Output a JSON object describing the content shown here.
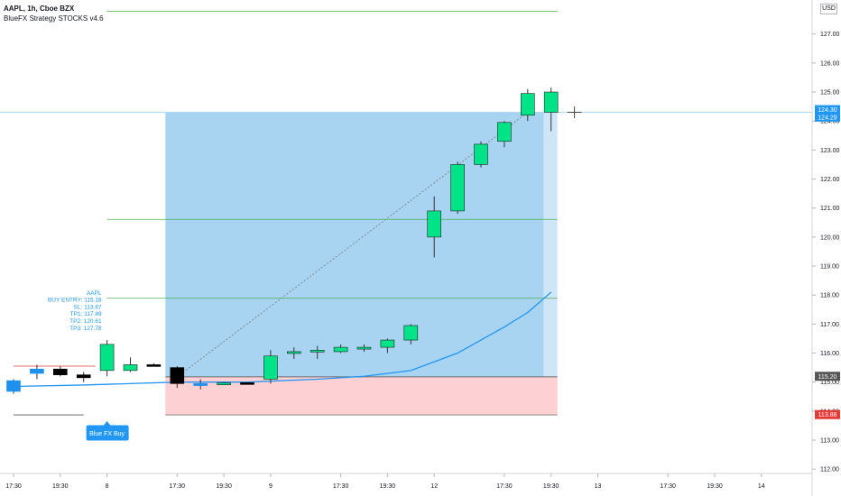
{
  "header": {
    "symbol_line": "AAPL, 1h, Cboe BZX",
    "indicator_line": "BlueFX Strategy STOCKS v4.6"
  },
  "currency_label": "USD",
  "colors": {
    "bull": "#00e487",
    "bear": "#000000",
    "blue_candle": "#1e90ee",
    "profit_zone": "#a8d4f2",
    "profit_zone_current": "#cfe6f8",
    "loss_zone": "#fdd0d3",
    "ma_line": "#2196f3",
    "tp_line": "#4caf50",
    "sl_line": "#e53935",
    "axis_text": "#131722",
    "price_tag_blue": "#2196f3",
    "price_tag_red": "#e53935",
    "price_tag_gray": "#555555"
  },
  "chart_data": {
    "type": "candlestick",
    "symbol": "AAPL",
    "interval": "1h",
    "ylim": [
      111.6,
      128.0
    ],
    "y_ticks": [
      "127.00",
      "126.00",
      "125.00",
      "124.00",
      "123.00",
      "122.00",
      "121.00",
      "120.00",
      "119.00",
      "118.00",
      "117.00",
      "116.00",
      "115.00",
      "114.00",
      "113.00",
      "112.00"
    ],
    "x_ticks": [
      {
        "i": 0,
        "label": "17:30"
      },
      {
        "i": 2,
        "label": "19:30"
      },
      {
        "i": 4,
        "label": "8"
      },
      {
        "i": 7,
        "label": "17:30"
      },
      {
        "i": 9,
        "label": "19:30"
      },
      {
        "i": 11,
        "label": "9"
      },
      {
        "i": 14,
        "label": "17:30"
      },
      {
        "i": 16,
        "label": "19:30"
      },
      {
        "i": 18,
        "label": "12"
      },
      {
        "i": 21,
        "label": "17:30"
      },
      {
        "i": 23,
        "label": "19:30"
      },
      {
        "i": 25,
        "label": "13"
      },
      {
        "i": 28,
        "label": "17:30"
      },
      {
        "i": 30,
        "label": "19:30"
      },
      {
        "i": 32,
        "label": "14"
      }
    ],
    "candles": [
      {
        "i": 0,
        "o": 114.68,
        "h": 115.1,
        "l": 114.6,
        "c": 115.05,
        "style": "blue"
      },
      {
        "i": 1,
        "o": 115.3,
        "h": 115.6,
        "l": 115.1,
        "c": 115.45,
        "style": "blue"
      },
      {
        "i": 2,
        "o": 115.45,
        "h": 115.55,
        "l": 115.2,
        "c": 115.25,
        "style": "bear"
      },
      {
        "i": 3,
        "o": 115.25,
        "h": 115.35,
        "l": 115.0,
        "c": 115.15,
        "style": "bear"
      },
      {
        "i": 4,
        "o": 115.4,
        "h": 116.45,
        "l": 115.2,
        "c": 116.3,
        "style": "bull"
      },
      {
        "i": 5,
        "o": 115.4,
        "h": 115.85,
        "l": 115.35,
        "c": 115.6,
        "style": "bull"
      },
      {
        "i": 6,
        "o": 115.6,
        "h": 115.65,
        "l": 115.55,
        "c": 115.55,
        "style": "bear"
      },
      {
        "i": 7,
        "o": 115.5,
        "h": 115.55,
        "l": 114.8,
        "c": 114.95,
        "style": "bear"
      },
      {
        "i": 8,
        "o": 114.95,
        "h": 115.1,
        "l": 114.75,
        "c": 114.88,
        "style": "blue"
      },
      {
        "i": 9,
        "o": 114.95,
        "h": 115.0,
        "l": 114.92,
        "c": 114.97,
        "style": "bull"
      },
      {
        "i": 10,
        "o": 114.98,
        "h": 115.0,
        "l": 114.93,
        "c": 114.95,
        "style": "bear"
      },
      {
        "i": 11,
        "o": 115.1,
        "h": 116.1,
        "l": 114.95,
        "c": 115.9,
        "style": "bull"
      },
      {
        "i": 12,
        "o": 116.0,
        "h": 116.2,
        "l": 115.8,
        "c": 116.05,
        "style": "bull"
      },
      {
        "i": 13,
        "o": 116.05,
        "h": 116.25,
        "l": 115.8,
        "c": 116.1,
        "style": "bull"
      },
      {
        "i": 14,
        "o": 116.05,
        "h": 116.3,
        "l": 116.0,
        "c": 116.2,
        "style": "bull"
      },
      {
        "i": 15,
        "o": 116.15,
        "h": 116.3,
        "l": 116.05,
        "c": 116.2,
        "style": "bull"
      },
      {
        "i": 16,
        "o": 116.2,
        "h": 116.5,
        "l": 116.0,
        "c": 116.45,
        "style": "bull"
      },
      {
        "i": 17,
        "o": 116.45,
        "h": 117.0,
        "l": 116.3,
        "c": 116.95,
        "style": "bull"
      },
      {
        "i": 18,
        "o": 120.0,
        "h": 121.4,
        "l": 119.3,
        "c": 120.9,
        "style": "bull"
      },
      {
        "i": 19,
        "o": 120.9,
        "h": 122.6,
        "l": 120.8,
        "c": 122.5,
        "style": "bull"
      },
      {
        "i": 20,
        "o": 122.5,
        "h": 123.3,
        "l": 122.4,
        "c": 123.2,
        "style": "bull"
      },
      {
        "i": 21,
        "o": 123.3,
        "h": 124.0,
        "l": 123.1,
        "c": 123.95,
        "style": "bull"
      },
      {
        "i": 22,
        "o": 124.2,
        "h": 125.1,
        "l": 124.0,
        "c": 124.95,
        "style": "bull"
      },
      {
        "i": 23,
        "o": 124.3,
        "h": 125.15,
        "l": 123.65,
        "c": 125.0,
        "style": "bull"
      },
      {
        "i": 24,
        "o": 124.3,
        "h": 124.5,
        "l": 124.1,
        "c": 124.3,
        "style": "cross"
      }
    ],
    "moving_average": [
      {
        "i": 0,
        "v": 114.85
      },
      {
        "i": 3,
        "v": 114.9
      },
      {
        "i": 7,
        "v": 115.0
      },
      {
        "i": 10,
        "v": 115.0
      },
      {
        "i": 13,
        "v": 115.1
      },
      {
        "i": 15,
        "v": 115.2
      },
      {
        "i": 17,
        "v": 115.4
      },
      {
        "i": 19,
        "v": 116.0
      },
      {
        "i": 21,
        "v": 116.9
      },
      {
        "i": 22,
        "v": 117.4
      },
      {
        "i": 23,
        "v": 118.1
      }
    ],
    "signal": {
      "label": "Blue FX Buy",
      "bar_index": 4,
      "info_lines": [
        "AAPL",
        "BUY ENTRY: 115.18",
        "SL: 113.87",
        "TP1: 117.89",
        "TP2: 120.61",
        "TP3: 127.78"
      ],
      "entry": 115.18,
      "sl": 113.87,
      "tp1": 117.89,
      "tp2": 120.61,
      "tp3": 127.78
    },
    "position_box": {
      "start_index": 6.5,
      "end_index": 23,
      "entry": 115.18,
      "target": 124.3,
      "stop": 113.87
    },
    "price_tags": [
      {
        "price": 124.3,
        "label": "124.30",
        "style": "blue"
      },
      {
        "price": 124.29,
        "label": "124.29",
        "style": "blue"
      },
      {
        "price": 115.2,
        "label": "115.20",
        "style": "gray"
      },
      {
        "price": 113.88,
        "label": "113.88",
        "style": "red"
      }
    ]
  }
}
